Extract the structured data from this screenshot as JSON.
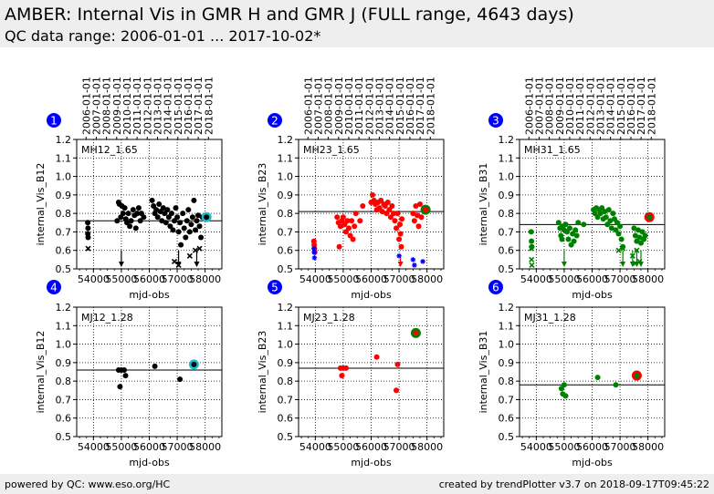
{
  "header": {
    "title": "AMBER: Internal Vis in GMR H and GMR J (FULL range, 4643 days)",
    "subtitle": "QC data range: 2006-01-01 ... 2017-10-02*"
  },
  "footer": {
    "left": "powered by QC: www.eso.org/HC",
    "right": "created by trendPlotter v3.7 on 2018-09-17T09:45:22"
  },
  "colors": {
    "black": "#000000",
    "red": "#ff0000",
    "green": "#008000",
    "blue": "#0000ff",
    "cyan": "#17becf",
    "badge": "#0000ff"
  },
  "chart_data": [
    {
      "type": "scatter",
      "badge": "1",
      "label": "MH12_1.65",
      "ylabel": "internal_Vis_B12",
      "xlabel": "mjd-obs",
      "color": "black",
      "ref": 0.76,
      "ylim": [
        0.5,
        1.2
      ],
      "yticks": [
        "0.5",
        "0.6",
        "0.7",
        "0.8",
        "0.9",
        "1.0",
        "1.1",
        "1.2"
      ],
      "xticks": [
        "54000",
        "55000",
        "56000",
        "57000",
        "58000"
      ],
      "date_ticks": [
        "2006-01-01",
        "2007-01-01",
        "2008-01-01",
        "2009-01-01",
        "2010-01-01",
        "2011-01-01",
        "2012-01-01",
        "2013-01-01",
        "2014-01-01",
        "2015-01-01",
        "2016-01-01",
        "2017-01-01",
        "2018-01-01"
      ],
      "points": [
        [
          53795,
          0.75
        ],
        [
          53805,
          0.72
        ],
        [
          53800,
          0.69
        ],
        [
          53810,
          0.67
        ],
        [
          54850,
          0.76
        ],
        [
          54900,
          0.86
        ],
        [
          54930,
          0.85
        ],
        [
          54980,
          0.78
        ],
        [
          55020,
          0.84
        ],
        [
          55060,
          0.8
        ],
        [
          55120,
          0.83
        ],
        [
          55160,
          0.77
        ],
        [
          55200,
          0.75
        ],
        [
          55250,
          0.8
        ],
        [
          55300,
          0.73
        ],
        [
          55350,
          0.76
        ],
        [
          55420,
          0.82
        ],
        [
          55470,
          0.79
        ],
        [
          55520,
          0.72
        ],
        [
          55570,
          0.8
        ],
        [
          55620,
          0.83
        ],
        [
          55680,
          0.76
        ],
        [
          55720,
          0.8
        ],
        [
          55800,
          0.78
        ],
        [
          56100,
          0.87
        ],
        [
          56150,
          0.84
        ],
        [
          56200,
          0.8
        ],
        [
          56250,
          0.82
        ],
        [
          56300,
          0.78
        ],
        [
          56350,
          0.85
        ],
        [
          56400,
          0.81
        ],
        [
          56450,
          0.76
        ],
        [
          56500,
          0.83
        ],
        [
          56550,
          0.8
        ],
        [
          56600,
          0.75
        ],
        [
          56650,
          0.82
        ],
        [
          56700,
          0.78
        ],
        [
          56750,
          0.73
        ],
        [
          56800,
          0.8
        ],
        [
          56850,
          0.71
        ],
        [
          56900,
          0.76
        ],
        [
          56950,
          0.83
        ],
        [
          57000,
          0.78
        ],
        [
          57050,
          0.7
        ],
        [
          57100,
          0.75
        ],
        [
          57130,
          0.63
        ],
        [
          57200,
          0.8
        ],
        [
          57250,
          0.72
        ],
        [
          57300,
          0.67
        ],
        [
          57350,
          0.76
        ],
        [
          57400,
          0.82
        ],
        [
          57450,
          0.7
        ],
        [
          57500,
          0.74
        ],
        [
          57550,
          0.78
        ],
        [
          57600,
          0.87
        ],
        [
          57650,
          0.71
        ],
        [
          57700,
          0.76
        ],
        [
          57750,
          0.79
        ],
        [
          57800,
          0.73
        ],
        [
          57850,
          0.67
        ],
        [
          57900,
          0.78
        ]
      ],
      "crosses": [
        [
          53810,
          0.61
        ],
        [
          56900,
          0.54
        ],
        [
          57050,
          0.52
        ],
        [
          57450,
          0.57
        ],
        [
          57650,
          0.6
        ],
        [
          57800,
          0.61
        ]
      ],
      "arrows": [
        [
          55000,
          0.6
        ],
        [
          57050,
          0.6
        ],
        [
          57700,
          0.6
        ]
      ],
      "stars": [],
      "highlight": [
        58050,
        0.78
      ],
      "highlight_color": "cyan"
    },
    {
      "type": "scatter",
      "badge": "2",
      "label": "MH23_1.65",
      "ylabel": "internal_Vis_B23",
      "xlabel": "mjd-obs",
      "color": "red",
      "ref": 0.81,
      "ylim": [
        0.5,
        1.2
      ],
      "yticks": [
        "0.5",
        "0.6",
        "0.7",
        "0.8",
        "0.9",
        "1.0",
        "1.1",
        "1.2"
      ],
      "xticks": [
        "54000",
        "55000",
        "56000",
        "57000",
        "58000"
      ],
      "date_ticks": [
        "2006-01-01",
        "2007-01-01",
        "2008-01-01",
        "2009-01-01",
        "2010-01-01",
        "2011-01-01",
        "2012-01-01",
        "2013-01-01",
        "2014-01-01",
        "2015-01-01",
        "2016-01-01",
        "2017-01-01",
        "2018-01-01"
      ],
      "points": [
        [
          53950,
          0.65
        ],
        [
          53960,
          0.63
        ],
        [
          53970,
          0.61
        ],
        [
          53980,
          0.59
        ],
        [
          54780,
          0.78
        ],
        [
          54830,
          0.75
        ],
        [
          54860,
          0.62
        ],
        [
          54900,
          0.73
        ],
        [
          54950,
          0.76
        ],
        [
          55000,
          0.78
        ],
        [
          55050,
          0.74
        ],
        [
          55100,
          0.7
        ],
        [
          55150,
          0.76
        ],
        [
          55200,
          0.72
        ],
        [
          55250,
          0.68
        ],
        [
          55300,
          0.76
        ],
        [
          55350,
          0.66
        ],
        [
          55400,
          0.73
        ],
        [
          55450,
          0.8
        ],
        [
          55600,
          0.76
        ],
        [
          55700,
          0.84
        ],
        [
          56000,
          0.86
        ],
        [
          56050,
          0.9
        ],
        [
          56100,
          0.87
        ],
        [
          56150,
          0.85
        ],
        [
          56200,
          0.82
        ],
        [
          56250,
          0.86
        ],
        [
          56300,
          0.83
        ],
        [
          56350,
          0.87
        ],
        [
          56400,
          0.81
        ],
        [
          56450,
          0.85
        ],
        [
          56500,
          0.84
        ],
        [
          56550,
          0.8
        ],
        [
          56600,
          0.86
        ],
        [
          56650,
          0.82
        ],
        [
          56700,
          0.78
        ],
        [
          56750,
          0.84
        ],
        [
          56800,
          0.8
        ],
        [
          56850,
          0.76
        ],
        [
          56900,
          0.72
        ],
        [
          56950,
          0.8
        ],
        [
          57000,
          0.66
        ],
        [
          57030,
          0.74
        ],
        [
          57050,
          0.69
        ],
        [
          57080,
          0.62
        ],
        [
          57100,
          0.77
        ],
        [
          57500,
          0.8
        ],
        [
          57550,
          0.76
        ],
        [
          57600,
          0.84
        ],
        [
          57650,
          0.79
        ],
        [
          57700,
          0.73
        ],
        [
          57750,
          0.85
        ],
        [
          57800,
          0.78
        ]
      ],
      "crosses": [],
      "arrows": [
        [
          57050,
          0.58
        ]
      ],
      "stars": [
        [
          53950,
          0.61
        ],
        [
          53960,
          0.59
        ],
        [
          53970,
          0.56
        ],
        [
          57000,
          0.57
        ],
        [
          57500,
          0.55
        ],
        [
          57550,
          0.52
        ],
        [
          57850,
          0.54
        ]
      ],
      "highlight": [
        57950,
        0.82
      ],
      "highlight_color": "green"
    },
    {
      "type": "scatter",
      "badge": "3",
      "label": "MH31_1.65",
      "ylabel": "internal_Vis_B31",
      "xlabel": "mjd-obs",
      "color": "green",
      "ref": 0.74,
      "ylim": [
        0.5,
        1.2
      ],
      "yticks": [
        "0.5",
        "0.6",
        "0.7",
        "0.8",
        "0.9",
        "1.0",
        "1.1",
        "1.2"
      ],
      "xticks": [
        "54000",
        "55000",
        "56000",
        "57000",
        "58000"
      ],
      "date_ticks": [
        "2006-01-01",
        "2007-01-01",
        "2008-01-01",
        "2009-01-01",
        "2010-01-01",
        "2011-01-01",
        "2012-01-01",
        "2013-01-01",
        "2014-01-01",
        "2015-01-01",
        "2016-01-01",
        "2017-01-01",
        "2018-01-01"
      ],
      "points": [
        [
          53820,
          0.7
        ],
        [
          53830,
          0.65
        ],
        [
          53840,
          0.62
        ],
        [
          54800,
          0.75
        ],
        [
          54850,
          0.72
        ],
        [
          54880,
          0.68
        ],
        [
          54920,
          0.66
        ],
        [
          54950,
          0.73
        ],
        [
          55000,
          0.71
        ],
        [
          55050,
          0.74
        ],
        [
          55100,
          0.7
        ],
        [
          55150,
          0.66
        ],
        [
          55200,
          0.72
        ],
        [
          55250,
          0.63
        ],
        [
          55300,
          0.69
        ],
        [
          55350,
          0.65
        ],
        [
          55400,
          0.71
        ],
        [
          55450,
          0.68
        ],
        [
          55500,
          0.75
        ],
        [
          55700,
          0.74
        ],
        [
          56050,
          0.82
        ],
        [
          56100,
          0.8
        ],
        [
          56150,
          0.83
        ],
        [
          56200,
          0.78
        ],
        [
          56250,
          0.82
        ],
        [
          56300,
          0.8
        ],
        [
          56350,
          0.83
        ],
        [
          56400,
          0.77
        ],
        [
          56450,
          0.81
        ],
        [
          56500,
          0.78
        ],
        [
          56550,
          0.74
        ],
        [
          56600,
          0.82
        ],
        [
          56650,
          0.76
        ],
        [
          56700,
          0.72
        ],
        [
          56750,
          0.8
        ],
        [
          56800,
          0.77
        ],
        [
          56850,
          0.71
        ],
        [
          56900,
          0.75
        ],
        [
          56950,
          0.69
        ],
        [
          57000,
          0.73
        ],
        [
          57050,
          0.66
        ],
        [
          57100,
          0.62
        ],
        [
          57500,
          0.72
        ],
        [
          57550,
          0.68
        ],
        [
          57600,
          0.65
        ],
        [
          57650,
          0.71
        ],
        [
          57700,
          0.67
        ],
        [
          57750,
          0.64
        ],
        [
          57800,
          0.7
        ],
        [
          57850,
          0.66
        ],
        [
          57900,
          0.68
        ]
      ],
      "crosses": [
        [
          53820,
          0.61
        ],
        [
          53830,
          0.55
        ],
        [
          53840,
          0.52
        ],
        [
          56950,
          0.6
        ],
        [
          57100,
          0.61
        ],
        [
          57450,
          0.57
        ],
        [
          57550,
          0.53
        ],
        [
          57600,
          0.6
        ],
        [
          57700,
          0.54
        ]
      ],
      "arrows": [
        [
          55000,
          0.6
        ],
        [
          57100,
          0.6
        ],
        [
          57450,
          0.6
        ],
        [
          57600,
          0.6
        ],
        [
          57750,
          0.6
        ]
      ],
      "stars": [],
      "highlight": [
        58050,
        0.78
      ],
      "highlight_color": "red"
    },
    {
      "type": "scatter",
      "badge": "4",
      "label": "MJ12_1.28",
      "ylabel": "internal_Vis_B12",
      "xlabel": "mjd-obs",
      "color": "black",
      "ref": 0.86,
      "ylim": [
        0.5,
        1.2
      ],
      "yticks": [
        "0.5",
        "0.6",
        "0.7",
        "0.8",
        "0.9",
        "1.0",
        "1.1",
        "1.2"
      ],
      "xticks": [
        "54000",
        "55000",
        "56000",
        "57000",
        "58000"
      ],
      "date_ticks": [],
      "points": [
        [
          54900,
          0.86
        ],
        [
          54950,
          0.77
        ],
        [
          55000,
          0.86
        ],
        [
          55100,
          0.86
        ],
        [
          55150,
          0.83
        ],
        [
          56200,
          0.88
        ],
        [
          57100,
          0.81
        ]
      ],
      "crosses": [],
      "arrows": [],
      "stars": [],
      "highlight": [
        57600,
        0.89
      ],
      "highlight_color": "cyan"
    },
    {
      "type": "scatter",
      "badge": "5",
      "label": "MJ23_1.28",
      "ylabel": "internal_Vis_B23",
      "xlabel": "mjd-obs",
      "color": "red",
      "ref": 0.87,
      "ylim": [
        0.5,
        1.2
      ],
      "yticks": [
        "0.5",
        "0.6",
        "0.7",
        "0.8",
        "0.9",
        "1.0",
        "1.1",
        "1.2"
      ],
      "xticks": [
        "54000",
        "55000",
        "56000",
        "57000",
        "58000"
      ],
      "date_ticks": [],
      "points": [
        [
          54900,
          0.87
        ],
        [
          54950,
          0.83
        ],
        [
          55000,
          0.87
        ],
        [
          55100,
          0.87
        ],
        [
          56200,
          0.93
        ],
        [
          56900,
          0.75
        ],
        [
          56950,
          0.89
        ]
      ],
      "crosses": [],
      "arrows": [],
      "stars": [],
      "highlight": [
        57600,
        1.06
      ],
      "highlight_color": "green"
    },
    {
      "type": "scatter",
      "badge": "6",
      "label": "MJ31_1.28",
      "ylabel": "internal_Vis_B31",
      "xlabel": "mjd-obs",
      "color": "green",
      "ref": 0.78,
      "ylim": [
        0.5,
        1.2
      ],
      "yticks": [
        "0.5",
        "0.6",
        "0.7",
        "0.8",
        "0.9",
        "1.0",
        "1.1",
        "1.2"
      ],
      "xticks": [
        "54000",
        "55000",
        "56000",
        "57000",
        "58000"
      ],
      "date_ticks": [],
      "points": [
        [
          54900,
          0.76
        ],
        [
          54950,
          0.73
        ],
        [
          55000,
          0.78
        ],
        [
          55050,
          0.72
        ],
        [
          56200,
          0.82
        ],
        [
          56850,
          0.78
        ]
      ],
      "crosses": [],
      "arrows": [],
      "stars": [],
      "highlight": [
        57600,
        0.83
      ],
      "highlight_color": "red"
    }
  ]
}
